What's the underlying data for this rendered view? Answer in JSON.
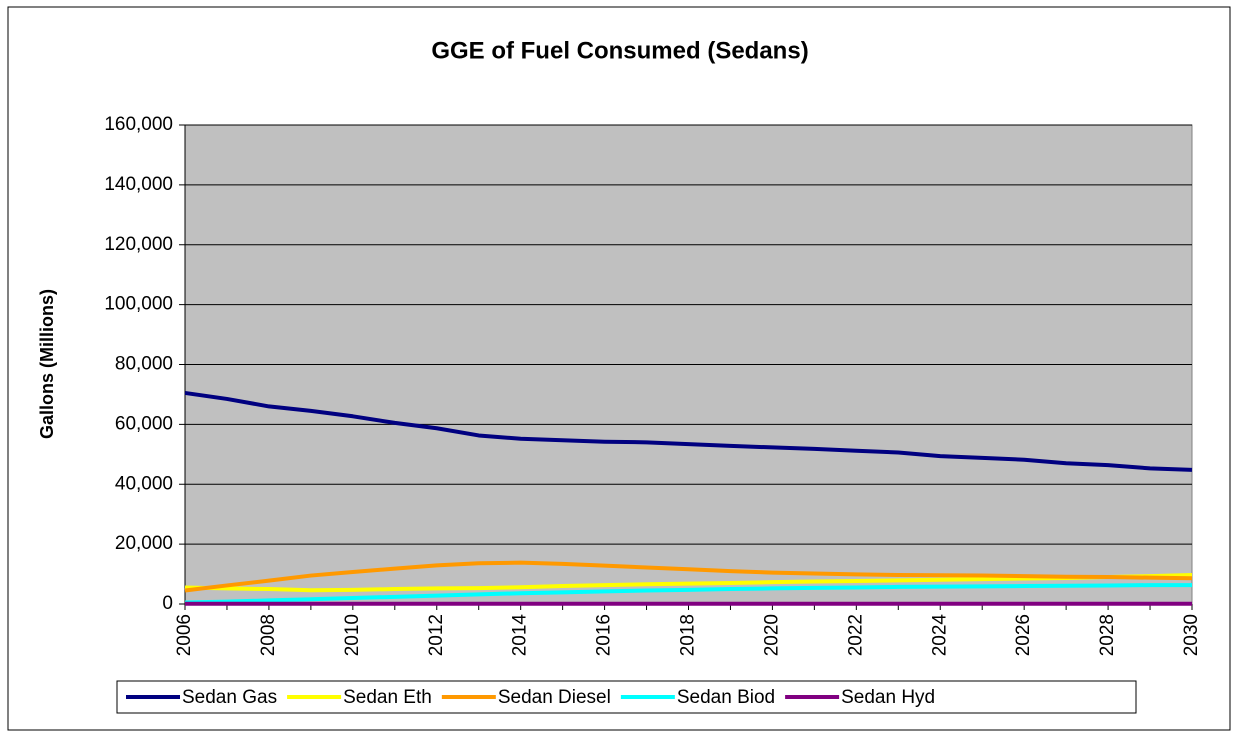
{
  "chart_data": {
    "type": "line",
    "title": "GGE of Fuel Consumed (Sedans)",
    "ylabel": "Gallons (Millions)",
    "x": [
      2006,
      2007,
      2008,
      2009,
      2010,
      2011,
      2012,
      2013,
      2014,
      2015,
      2016,
      2017,
      2018,
      2019,
      2020,
      2021,
      2022,
      2023,
      2024,
      2025,
      2026,
      2027,
      2028,
      2029,
      2030
    ],
    "xlim": [
      2006,
      2030
    ],
    "xticks": [
      2006,
      2008,
      2010,
      2012,
      2014,
      2016,
      2018,
      2020,
      2022,
      2024,
      2026,
      2028,
      2030
    ],
    "ylim": [
      0,
      160000
    ],
    "yticks": [
      0,
      {
        "value": 20000,
        "label": "20,000"
      },
      {
        "value": 40000,
        "label": "40,000"
      },
      {
        "value": 60000,
        "label": "60,000"
      },
      {
        "value": 80000,
        "label": "80,000"
      },
      {
        "value": 100000,
        "label": "100,000"
      },
      {
        "value": 120000,
        "label": "120,000"
      },
      {
        "value": 140000,
        "label": "140,000"
      },
      {
        "value": 160000,
        "label": "160,000"
      }
    ],
    "grid": true,
    "legend": "bottom",
    "series": [
      {
        "name": "Sedan Gas",
        "color": "#000080",
        "values": [
          70500,
          68500,
          66000,
          64500,
          62700,
          60500,
          58700,
          56300,
          55200,
          54700,
          54200,
          54000,
          53400,
          52800,
          52300,
          51800,
          51200,
          50600,
          49400,
          48800,
          48200,
          47000,
          46400,
          45300,
          44800
        ]
      },
      {
        "name": "Sedan Eth",
        "color": "#ffff00",
        "values": [
          5500,
          5200,
          5000,
          4600,
          4700,
          5000,
          5200,
          5300,
          5600,
          6000,
          6300,
          6600,
          6800,
          7000,
          7300,
          7500,
          7700,
          7900,
          8100,
          8300,
          8500,
          8700,
          9000,
          9300,
          9700
        ]
      },
      {
        "name": "Sedan Diesel",
        "color": "#ff9900",
        "values": [
          4500,
          6200,
          7800,
          9500,
          10700,
          11800,
          12900,
          13600,
          13800,
          13400,
          12800,
          12200,
          11600,
          11000,
          10500,
          10200,
          9900,
          9700,
          9600,
          9500,
          9300,
          9100,
          9000,
          8800,
          8600
        ]
      },
      {
        "name": "Sedan Biod",
        "color": "#00ffff",
        "values": [
          500,
          800,
          1200,
          1600,
          2000,
          2400,
          2800,
          3200,
          3600,
          3900,
          4200,
          4500,
          4700,
          5000,
          5200,
          5400,
          5500,
          5700,
          5800,
          5900,
          6000,
          6100,
          6200,
          6300,
          6300
        ]
      },
      {
        "name": "Sedan Hyd",
        "color": "#800080",
        "values": [
          100,
          100,
          100,
          100,
          100,
          100,
          100,
          100,
          100,
          100,
          100,
          100,
          100,
          100,
          100,
          100,
          100,
          100,
          100,
          100,
          100,
          100,
          100,
          100,
          100
        ]
      }
    ]
  }
}
